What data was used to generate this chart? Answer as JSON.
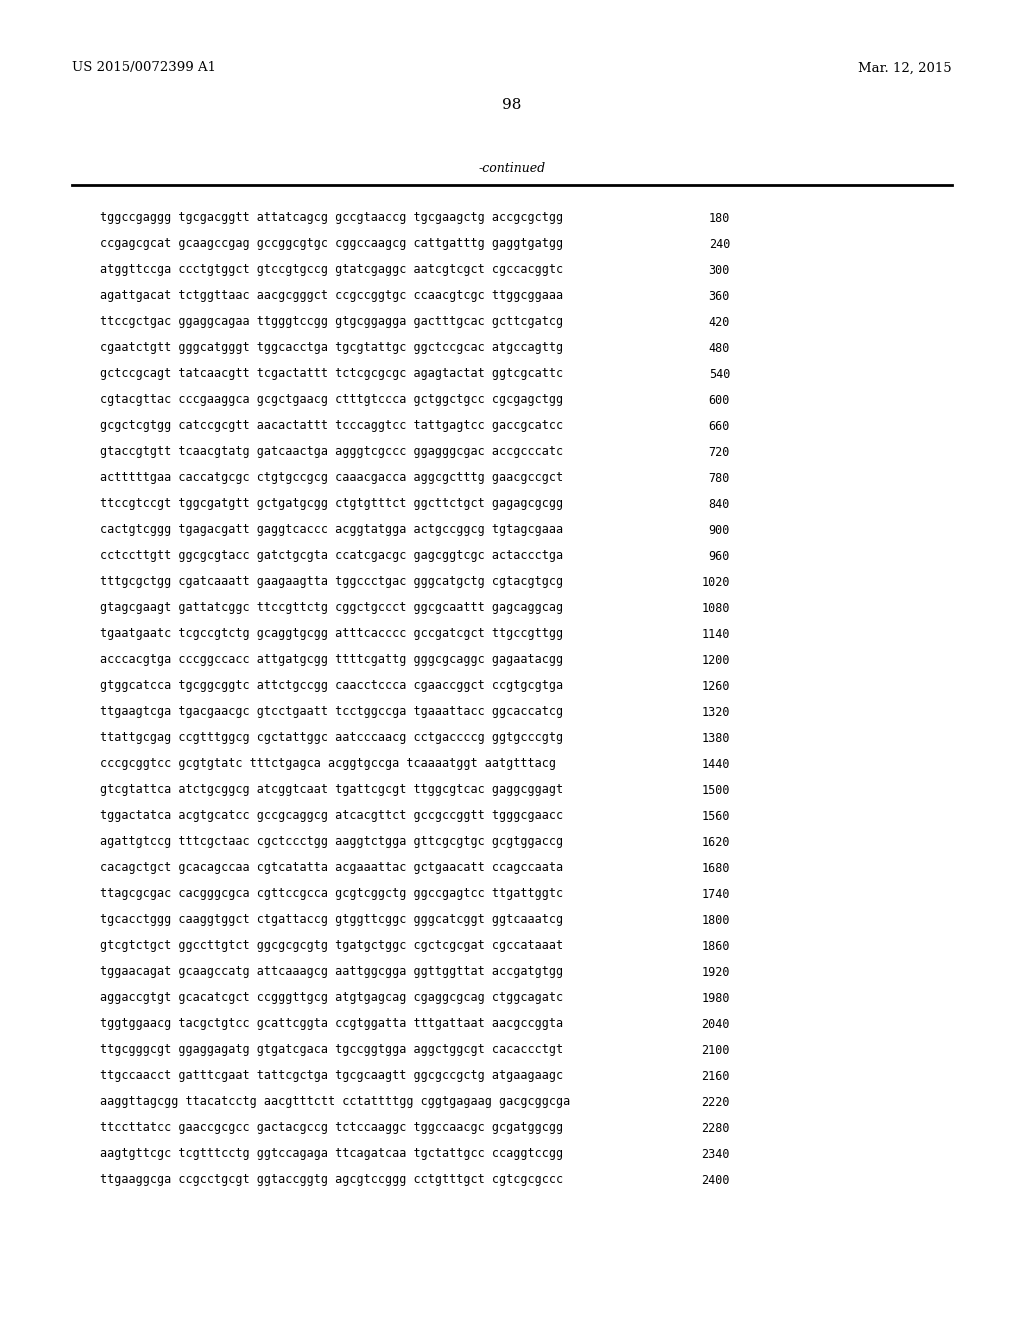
{
  "header_left": "US 2015/0072399 A1",
  "header_right": "Mar. 12, 2015",
  "page_number": "98",
  "continued_label": "-continued",
  "background_color": "#ffffff",
  "text_color": "#000000",
  "font_size": 8.5,
  "header_font_size": 9.5,
  "page_num_font_size": 11,
  "continued_font_size": 9.0,
  "sequence_lines": [
    [
      "tggccgaggg tgcgacggtt attatcagcg gccgtaaccg tgcgaagctg accgcgctgg",
      "180"
    ],
    [
      "ccgagcgcat gcaagccgag gccggcgtgc cggccaagcg cattgatttg gaggtgatgg",
      "240"
    ],
    [
      "atggttccga ccctgtggct gtccgtgccg gtatcgaggc aatcgtcgct cgccacggtc",
      "300"
    ],
    [
      "agattgacat tctggttaac aacgcgggct ccgccggtgc ccaacgtcgc ttggcggaaa",
      "360"
    ],
    [
      "ttccgctgac ggaggcagaa ttgggtccgg gtgcggagga gactttgcac gcttcgatcg",
      "420"
    ],
    [
      "cgaatctgtt gggcatgggt tggcacctga tgcgtattgc ggctccgcac atgccagttg",
      "480"
    ],
    [
      "gctccgcagt tatcaacgtt tcgactattt tctcgcgcgc agagtactat ggtcgcattc",
      "540"
    ],
    [
      "cgtacgttac cccgaaggca gcgctgaacg ctttgtccca gctggctgcc cgcgagctgg",
      "600"
    ],
    [
      "gcgctcgtgg catccgcgtt aacactattt tcccaggtcc tattgagtcc gaccgcatcc",
      "660"
    ],
    [
      "gtaccgtgtt tcaacgtatg gatcaactga agggtcgccc ggagggcgac accgcccatc",
      "720"
    ],
    [
      "actttttgaa caccatgcgc ctgtgccgcg caaacgacca aggcgctttg gaacgccgct",
      "780"
    ],
    [
      "ttccgtccgt tggcgatgtt gctgatgcgg ctgtgtttct ggcttctgct gagagcgcgg",
      "840"
    ],
    [
      "cactgtcggg tgagacgatt gaggtcaccc acggtatgga actgccggcg tgtagcgaaa",
      "900"
    ],
    [
      "cctccttgtt ggcgcgtacc gatctgcgta ccatcgacgc gagcggtcgc actaccctga",
      "960"
    ],
    [
      "tttgcgctgg cgatcaaatt gaagaagtta tggccctgac gggcatgctg cgtacgtgcg",
      "1020"
    ],
    [
      "gtagcgaagt gattatcggc ttccgttctg cggctgccct ggcgcaattt gagcaggcag",
      "1080"
    ],
    [
      "tgaatgaatc tcgccgtctg gcaggtgcgg atttcacccc gccgatcgct ttgccgttgg",
      "1140"
    ],
    [
      "acccacgtga cccggccacc attgatgcgg ttttcgattg gggcgcaggc gagaatacgg",
      "1200"
    ],
    [
      "gtggcatcca tgcggcggtc attctgccgg caacctccca cgaaccggct ccgtgcgtga",
      "1260"
    ],
    [
      "ttgaagtcga tgacgaacgc gtcctgaatt tcctggccga tgaaattacc ggcaccatcg",
      "1320"
    ],
    [
      "ttattgcgag ccgtttggcg cgctattggc aatcccaacg cctgaccccg ggtgcccgtg",
      "1380"
    ],
    [
      "cccgcggtcc gcgtgtatc tttctgagca acggtgccga tcaaaatggt aatgtttacg",
      "1440"
    ],
    [
      "gtcgtattca atctgcggcg atcggtcaat tgattcgcgt ttggcgtcac gaggcggagt",
      "1500"
    ],
    [
      "tggactatca acgtgcatcc gccgcaggcg atcacgttct gccgccggtt tgggcgaacc",
      "1560"
    ],
    [
      "agattgtccg tttcgctaac cgctccctgg aaggtctgga gttcgcgtgc gcgtggaccg",
      "1620"
    ],
    [
      "cacagctgct gcacagccaa cgtcatatta acgaaattac gctgaacatt ccagccaata",
      "1680"
    ],
    [
      "ttagcgcgac cacgggcgca cgttccgcca gcgtcggctg ggccgagtcc ttgattggtc",
      "1740"
    ],
    [
      "tgcacctggg caaggtggct ctgattaccg gtggttcggc gggcatcggt ggtcaaatcg",
      "1800"
    ],
    [
      "gtcgtctgct ggccttgtct ggcgcgcgtg tgatgctggc cgctcgcgat cgccataaat",
      "1860"
    ],
    [
      "tggaacagat gcaagccatg attcaaagcg aattggcgga ggttggttat accgatgtgg",
      "1920"
    ],
    [
      "aggaccgtgt gcacatcgct ccgggttgcg atgtgagcag cgaggcgcag ctggcagatc",
      "1980"
    ],
    [
      "tggtggaacg tacgctgtcc gcattcggta ccgtggatta tttgattaat aacgccggta",
      "2040"
    ],
    [
      "ttgcgggcgt ggaggagatg gtgatcgaca tgccggtgga aggctggcgt cacaccctgt",
      "2100"
    ],
    [
      "ttgccaacct gatttcgaat tattcgctga tgcgcaagtt ggcgccgctg atgaagaagc",
      "2160"
    ],
    [
      "aaggttagcgg ttacatcctg aacgtttctt cctattttgg cggtgagaag gacgcggcga",
      "2220"
    ],
    [
      "ttccttatcc gaaccgcgcc gactacgccg tctccaaggc tggccaacgc gcgatggcgg",
      "2280"
    ],
    [
      "aagtgttcgc tcgtttcctg ggtccagaga ttcagatcaa tgctattgcc ccaggtccgg",
      "2340"
    ],
    [
      "ttgaaggcga ccgcctgcgt ggtaccggtg agcgtccggg cctgtttgct cgtcgcgccc",
      "2400"
    ]
  ]
}
